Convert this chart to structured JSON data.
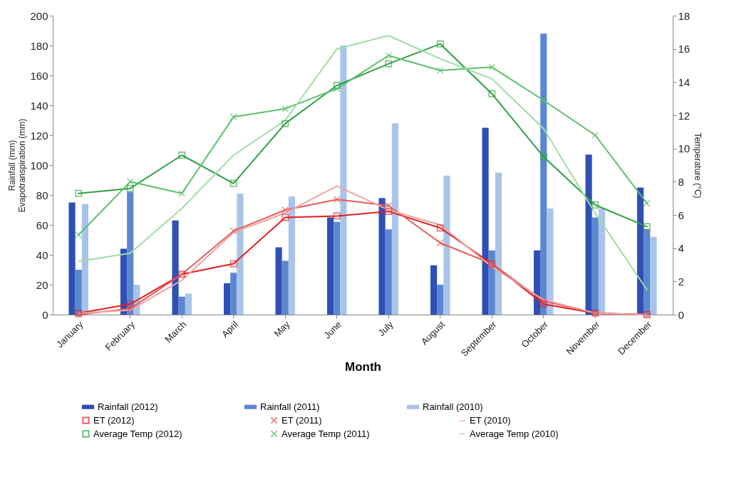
{
  "chart_data": {
    "type": "bar",
    "xlabel": "Month",
    "ylabel": "Rainfall (mm)\nEvapotranspiration (mm)",
    "y2label": "Temperature (°C)",
    "categories": [
      "January",
      "February",
      "March",
      "April",
      "May",
      "June",
      "July",
      "August",
      "September",
      "October",
      "November",
      "December"
    ],
    "ylim": [
      0,
      200
    ],
    "yticks": [
      0,
      20,
      40,
      60,
      80,
      100,
      120,
      140,
      160,
      180,
      200
    ],
    "y2lim": [
      0,
      18
    ],
    "y2ticks": [
      0,
      2,
      4,
      6,
      8,
      10,
      12,
      14,
      16,
      18
    ],
    "grid": false,
    "legend": "bottom",
    "series": [
      {
        "name": "Rainfall (2012)",
        "color": "#2e4fb5",
        "values": [
          75,
          44,
          63,
          21,
          45,
          65,
          78,
          33,
          125,
          43,
          107,
          85
        ]
      },
      {
        "name": "Rainfall (2011)",
        "color": "#5b87d0",
        "values": [
          30,
          82,
          12,
          28,
          36,
          62,
          57,
          20,
          43,
          188,
          65,
          57
        ]
      },
      {
        "name": "Rainfall (2010)",
        "color": "#a9c4ea",
        "values": [
          74,
          20,
          14,
          81,
          79,
          180,
          128,
          93,
          95,
          71,
          71,
          52
        ]
      },
      {
        "name": "ET (2012)",
        "type": "line",
        "marker": "square",
        "color": "#e02020",
        "values": [
          1,
          7,
          27,
          34,
          65,
          66,
          69,
          58,
          34,
          7,
          1,
          0
        ]
      },
      {
        "name": "ET (2011)",
        "type": "line",
        "marker": "cross",
        "color": "#e65c5c",
        "values": [
          0,
          4,
          27,
          56,
          70,
          77,
          73,
          48,
          34,
          9,
          1,
          0
        ]
      },
      {
        "name": "ET (2010)",
        "type": "line",
        "marker": "none",
        "color": "#f2a3a3",
        "values": [
          1,
          3,
          23,
          55,
          68,
          86,
          70,
          60,
          32,
          10,
          1,
          0
        ]
      },
      {
        "name": "Average Temp (2012)",
        "type": "line",
        "axis": "y2",
        "marker": "square",
        "color": "#2ea043",
        "values": [
          7.3,
          7.6,
          9.6,
          7.9,
          11.5,
          13.8,
          15.1,
          16.3,
          13.3,
          9.5,
          6.6,
          5.3
        ]
      },
      {
        "name": "Average Temp (2011)",
        "type": "line",
        "axis": "y2",
        "marker": "cross",
        "color": "#5cbf6a",
        "values": [
          4.8,
          8.0,
          7.3,
          11.9,
          12.4,
          13.6,
          15.6,
          14.7,
          14.9,
          12.9,
          10.8,
          6.7
        ]
      },
      {
        "name": "Average Temp (2010)",
        "type": "line",
        "axis": "y2",
        "marker": "none",
        "color": "#9fdca5",
        "values": [
          3.2,
          3.7,
          6.4,
          9.6,
          11.7,
          16.0,
          16.8,
          15.4,
          14.2,
          11.2,
          6.1,
          1.5
        ]
      }
    ]
  }
}
